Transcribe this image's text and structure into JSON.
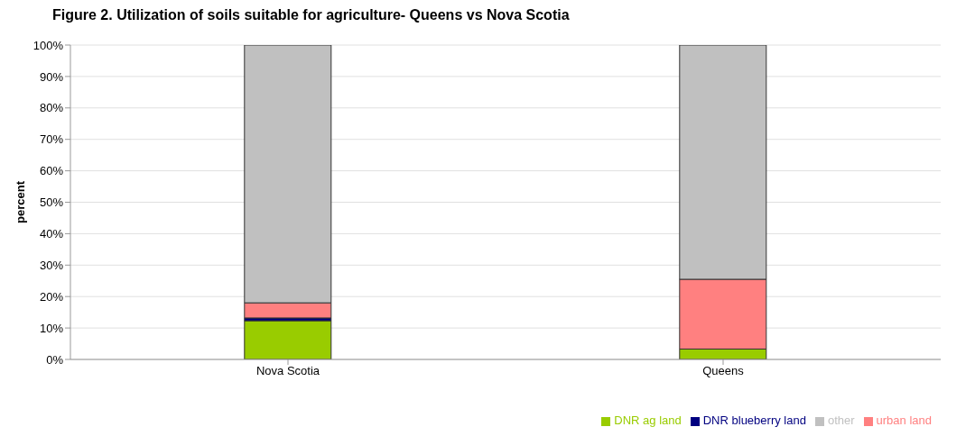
{
  "chart_data": {
    "type": "bar",
    "title": "Figure 2.  Utilization of soils suitable for agriculture- Queens vs Nova Scotia",
    "ylabel": "percent",
    "categories": [
      "Nova Scotia",
      "Queens"
    ],
    "stacked": true,
    "series": [
      {
        "name": "DNR ag land",
        "color": "#99cc00",
        "values": [
          12.3,
          3.3
        ]
      },
      {
        "name": "DNR blueberry land",
        "color": "#000080",
        "values": [
          0.9,
          0
        ]
      },
      {
        "name": "urban land",
        "color": "#ff8080",
        "values": [
          4.8,
          22.2
        ]
      },
      {
        "name": "other",
        "color": "#c0c0c0",
        "values": [
          82,
          74.5
        ]
      }
    ],
    "ylim": [
      0,
      100
    ],
    "yticks": [
      {
        "value": 0,
        "label": "0%"
      },
      {
        "value": 10,
        "label": "10%"
      },
      {
        "value": 20,
        "label": "20%"
      },
      {
        "value": 30,
        "label": "30%"
      },
      {
        "value": 40,
        "label": "40%"
      },
      {
        "value": 50,
        "label": "50%"
      },
      {
        "value": 60,
        "label": "60%"
      },
      {
        "value": 70,
        "label": "70%"
      },
      {
        "value": 80,
        "label": "80%"
      },
      {
        "value": 90,
        "label": "90%"
      },
      {
        "value": 100,
        "label": "100%"
      }
    ],
    "grid": "y",
    "legend": "bottom right"
  }
}
